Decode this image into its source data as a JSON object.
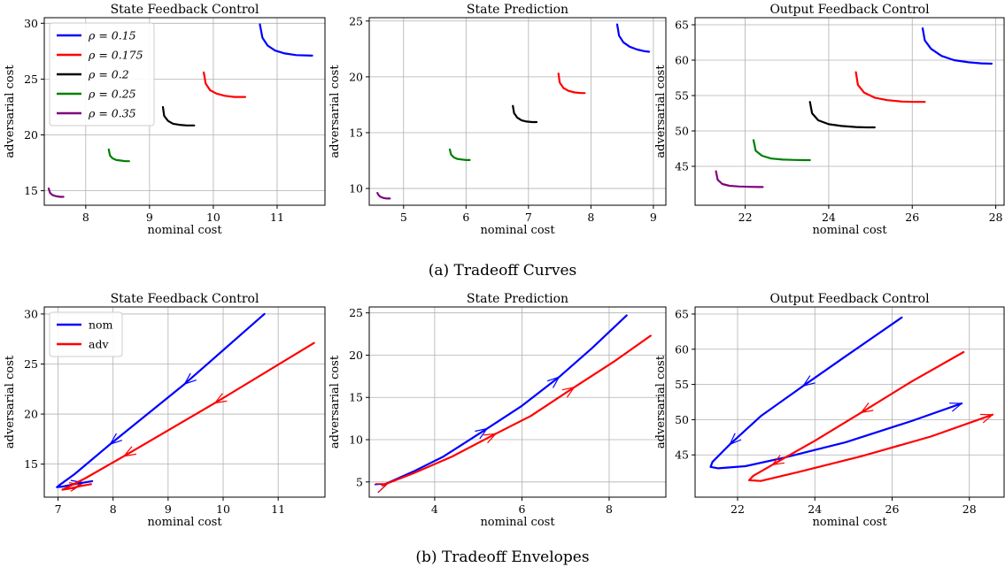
{
  "captions": {
    "a": "(a) Tradeoff Curves",
    "b": "(b) Tradeoff Envelopes"
  },
  "colors": {
    "rho_0.15": "#0000ff",
    "rho_0.175": "#ff0000",
    "rho_0.2": "#000000",
    "rho_0.25": "#008000",
    "rho_0.35": "#800080",
    "nom": "#0000ff",
    "adv": "#ff0000"
  },
  "chart_data": [
    {
      "type": "line",
      "title": "State Feedback Control",
      "xlabel": "nominal cost",
      "ylabel": "adversarial cost",
      "xlim": [
        7.35,
        11.75
      ],
      "ylim": [
        13.7,
        30.5
      ],
      "xticks": [
        8,
        9,
        10,
        11
      ],
      "yticks": [
        15,
        20,
        25,
        30
      ],
      "grid": true,
      "legend": "top-left",
      "series": [
        {
          "name": "ρ = 0.15",
          "x": [
            10.73,
            10.77,
            10.85,
            10.97,
            11.12,
            11.3,
            11.55
          ],
          "y": [
            29.9,
            28.7,
            28.0,
            27.55,
            27.3,
            27.15,
            27.1
          ]
        },
        {
          "name": "ρ = 0.175",
          "x": [
            9.85,
            9.88,
            9.95,
            10.05,
            10.18,
            10.33,
            10.5
          ],
          "y": [
            25.6,
            24.6,
            24.0,
            23.7,
            23.5,
            23.4,
            23.4
          ]
        },
        {
          "name": "ρ = 0.2",
          "x": [
            9.21,
            9.23,
            9.29,
            9.37,
            9.47,
            9.58,
            9.7
          ],
          "y": [
            22.5,
            21.7,
            21.25,
            21.0,
            20.9,
            20.85,
            20.85
          ]
        },
        {
          "name": "ρ = 0.25",
          "x": [
            8.36,
            8.38,
            8.42,
            8.48,
            8.55,
            8.62,
            8.68
          ],
          "y": [
            18.7,
            18.15,
            17.9,
            17.75,
            17.7,
            17.65,
            17.65
          ]
        },
        {
          "name": "ρ = 0.35",
          "x": [
            7.42,
            7.44,
            7.48,
            7.54,
            7.6,
            7.65
          ],
          "y": [
            15.2,
            14.8,
            14.6,
            14.5,
            14.45,
            14.45
          ]
        }
      ]
    },
    {
      "type": "line",
      "title": "State Prediction",
      "xlabel": "nominal cost",
      "ylabel": "adversarial cost",
      "xlim": [
        4.45,
        9.2
      ],
      "ylim": [
        8.5,
        25.3
      ],
      "xticks": [
        5,
        6,
        7,
        8,
        9
      ],
      "yticks": [
        10,
        15,
        20,
        25
      ],
      "grid": true,
      "series": [
        {
          "name": "ρ = 0.15",
          "x": [
            8.42,
            8.45,
            8.52,
            8.62,
            8.74,
            8.86,
            8.93
          ],
          "y": [
            24.7,
            23.7,
            23.1,
            22.7,
            22.45,
            22.3,
            22.25
          ]
        },
        {
          "name": "ρ = 0.175",
          "x": [
            7.48,
            7.5,
            7.56,
            7.64,
            7.74,
            7.84,
            7.9
          ],
          "y": [
            20.3,
            19.5,
            19.0,
            18.75,
            18.6,
            18.55,
            18.55
          ]
        },
        {
          "name": "ρ = 0.2",
          "x": [
            6.75,
            6.77,
            6.82,
            6.89,
            6.97,
            7.06,
            7.13
          ],
          "y": [
            17.4,
            16.75,
            16.35,
            16.1,
            16.0,
            15.95,
            15.95
          ]
        },
        {
          "name": "ρ = 0.25",
          "x": [
            5.74,
            5.76,
            5.8,
            5.86,
            5.93,
            6.0,
            6.06
          ],
          "y": [
            13.5,
            13.05,
            12.8,
            12.65,
            12.6,
            12.55,
            12.55
          ]
        },
        {
          "name": "ρ = 0.35",
          "x": [
            4.58,
            4.6,
            4.63,
            4.68,
            4.73,
            4.78
          ],
          "y": [
            9.6,
            9.4,
            9.25,
            9.15,
            9.1,
            9.1
          ]
        }
      ]
    },
    {
      "type": "line",
      "title": "Output Feedback Control",
      "xlabel": "nominal cost",
      "ylabel": "adversarial cost",
      "xlim": [
        20.8,
        28.2
      ],
      "ylim": [
        39.5,
        66
      ],
      "xticks": [
        22,
        24,
        26,
        28
      ],
      "yticks": [
        45,
        50,
        55,
        60,
        65
      ],
      "grid": true,
      "series": [
        {
          "name": "ρ = 0.15",
          "x": [
            26.25,
            26.3,
            26.45,
            26.7,
            27.0,
            27.35,
            27.65,
            27.9
          ],
          "y": [
            64.5,
            62.8,
            61.6,
            60.6,
            60.0,
            59.7,
            59.55,
            59.5
          ]
        },
        {
          "name": "ρ = 0.175",
          "x": [
            24.65,
            24.7,
            24.85,
            25.1,
            25.4,
            25.75,
            26.05,
            26.3
          ],
          "y": [
            58.3,
            56.5,
            55.4,
            54.7,
            54.35,
            54.15,
            54.1,
            54.1
          ]
        },
        {
          "name": "ρ = 0.2",
          "x": [
            23.55,
            23.6,
            23.75,
            24.0,
            24.3,
            24.65,
            24.9,
            25.1
          ],
          "y": [
            54.1,
            52.5,
            51.5,
            50.95,
            50.7,
            50.55,
            50.5,
            50.5
          ]
        },
        {
          "name": "ρ = 0.25",
          "x": [
            22.2,
            22.25,
            22.4,
            22.62,
            22.9,
            23.2,
            23.4,
            23.55
          ],
          "y": [
            48.7,
            47.2,
            46.5,
            46.1,
            45.95,
            45.9,
            45.88,
            45.88
          ]
        },
        {
          "name": "ρ = 0.35",
          "x": [
            21.3,
            21.34,
            21.45,
            21.62,
            21.85,
            22.1,
            22.3,
            22.42
          ],
          "y": [
            44.3,
            43.1,
            42.5,
            42.25,
            42.15,
            42.1,
            42.08,
            42.08
          ]
        }
      ]
    },
    {
      "type": "line",
      "title": "State Feedback Control",
      "xlabel": "nominal cost",
      "ylabel": "adversarial cost",
      "xlim": [
        6.75,
        11.85
      ],
      "ylim": [
        11.7,
        30.7
      ],
      "xticks": [
        7,
        8,
        9,
        10,
        11
      ],
      "yticks": [
        15,
        20,
        25,
        30
      ],
      "grid": true,
      "legend": "top-left",
      "series": [
        {
          "name": "nom",
          "x": [
            10.75,
            9.3,
            7.95,
            7.3,
            7.05,
            6.98,
            7.08,
            7.3,
            7.62
          ],
          "y": [
            30.0,
            23.0,
            17.0,
            14.0,
            13.0,
            12.7,
            12.75,
            13.0,
            13.3
          ],
          "arrows": [
            [
              9.3,
              23.0
            ],
            [
              7.95,
              17.0
            ],
            [
              7.45,
              13.15
            ]
          ]
        },
        {
          "name": "adv",
          "x": [
            11.65,
            9.85,
            8.2,
            7.5,
            7.18,
            7.08,
            7.2,
            7.4,
            7.6
          ],
          "y": [
            27.1,
            21.1,
            15.8,
            13.6,
            12.7,
            12.45,
            12.55,
            12.8,
            13.0
          ],
          "arrows": [
            [
              9.85,
              21.1
            ],
            [
              8.2,
              15.8
            ],
            [
              7.42,
              12.95
            ]
          ]
        }
      ]
    },
    {
      "type": "line",
      "title": "State Prediction",
      "xlabel": "nominal cost",
      "ylabel": "adversarial cost",
      "xlim": [
        2.5,
        9.3
      ],
      "ylim": [
        3.2,
        25.7
      ],
      "xticks": [
        4,
        6,
        8
      ],
      "yticks": [
        5,
        10,
        15,
        20,
        25
      ],
      "grid": true,
      "series": [
        {
          "name": "nom",
          "x": [
            2.8,
            3.5,
            4.2,
            5.2,
            6.0,
            6.85,
            7.6,
            8.4
          ],
          "y": [
            4.6,
            6.2,
            8.0,
            11.3,
            14.0,
            17.4,
            20.8,
            24.7
          ],
          "arrows": [
            [
              6.85,
              17.4
            ],
            [
              5.2,
              11.3
            ],
            [
              2.9,
              4.75
            ]
          ]
        },
        {
          "name": "adv",
          "x": [
            2.8,
            3.5,
            4.4,
            5.4,
            6.2,
            7.2,
            8.1,
            8.95
          ],
          "y": [
            4.6,
            6.0,
            8.0,
            10.7,
            12.8,
            16.2,
            19.2,
            22.3
          ],
          "arrows": [
            [
              7.2,
              16.2
            ],
            [
              5.4,
              10.7
            ],
            [
              2.92,
              4.78
            ]
          ]
        }
      ]
    },
    {
      "type": "line",
      "title": "Output Feedback Control",
      "xlabel": "nominal cost",
      "ylabel": "adversarial cost",
      "xlim": [
        20.9,
        28.9
      ],
      "ylim": [
        39.0,
        66.0
      ],
      "xticks": [
        22,
        24,
        26,
        28
      ],
      "yticks": [
        45,
        50,
        55,
        60,
        65
      ],
      "grid": true,
      "series": [
        {
          "name": "nom",
          "x": [
            26.25,
            24.8,
            23.7,
            22.6,
            21.8,
            21.35,
            21.3,
            21.5,
            22.2,
            23.2,
            24.8,
            26.5,
            27.8
          ],
          "y": [
            64.5,
            59.0,
            54.8,
            50.5,
            46.5,
            44.0,
            43.3,
            43.1,
            43.4,
            44.6,
            46.8,
            49.8,
            52.3
          ],
          "arrows": [
            [
              23.7,
              54.8
            ],
            [
              21.8,
              46.5
            ],
            [
              27.8,
              52.3
            ]
          ]
        },
        {
          "name": "adv",
          "x": [
            27.85,
            26.5,
            25.2,
            24.0,
            22.9,
            22.4,
            22.3,
            22.6,
            23.6,
            25.2,
            27.0,
            28.6
          ],
          "y": [
            59.6,
            55.4,
            51.0,
            47.0,
            43.6,
            42.0,
            41.4,
            41.3,
            42.6,
            44.8,
            47.6,
            50.7
          ],
          "arrows": [
            [
              25.2,
              51.0
            ],
            [
              22.9,
              43.6
            ],
            [
              28.6,
              50.7
            ]
          ]
        }
      ]
    }
  ]
}
